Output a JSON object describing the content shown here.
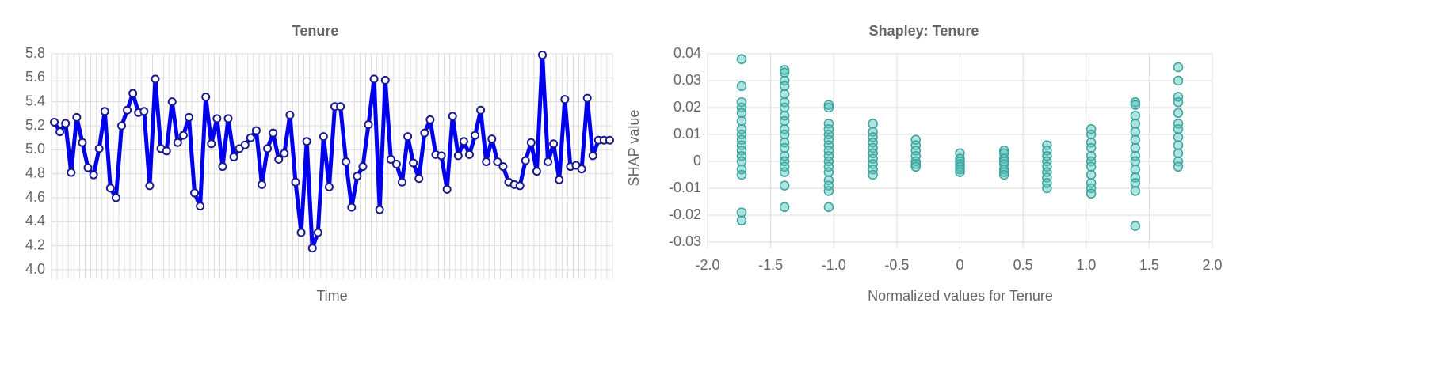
{
  "chart_data": [
    {
      "type": "line",
      "title": "Tenure",
      "x_label": "Time",
      "color": "#0000ee",
      "grid": true,
      "categories": [
        null,
        null,
        null,
        null,
        null,
        null,
        null,
        null,
        null,
        null,
        null,
        null,
        null,
        null,
        null,
        null,
        null,
        null,
        null,
        null,
        null,
        null,
        null,
        null,
        null,
        null,
        null,
        null,
        null,
        null,
        null,
        null,
        null,
        null,
        null,
        null,
        null,
        null,
        null,
        null,
        null,
        null,
        null,
        null,
        null,
        null,
        null,
        null,
        null,
        null,
        null,
        null,
        null,
        null,
        null,
        null,
        null,
        null,
        null,
        null,
        null,
        null,
        null,
        null,
        null,
        null,
        null,
        null,
        null,
        null,
        null,
        null,
        null,
        null,
        null,
        null,
        null,
        null,
        null,
        null,
        null,
        null,
        null,
        null,
        null,
        null,
        null,
        null,
        null,
        null,
        null,
        null,
        null,
        null,
        null,
        null,
        null,
        null,
        null,
        null
      ],
      "values": [
        5.23,
        5.15,
        5.22,
        4.81,
        5.27,
        5.06,
        4.85,
        4.79,
        5.01,
        5.32,
        4.68,
        4.6,
        5.2,
        5.33,
        5.47,
        5.31,
        5.32,
        4.7,
        5.59,
        5.01,
        4.99,
        5.4,
        5.06,
        5.12,
        5.27,
        4.64,
        4.53,
        5.44,
        5.05,
        5.26,
        4.86,
        5.26,
        4.94,
        5.01,
        5.04,
        5.1,
        5.16,
        4.71,
        5.01,
        5.14,
        4.92,
        4.97,
        5.29,
        4.73,
        4.31,
        5.07,
        4.18,
        4.31,
        5.11,
        4.69,
        5.36,
        5.36,
        4.9,
        4.52,
        4.78,
        4.86,
        5.21,
        5.59,
        4.5,
        5.58,
        4.92,
        4.88,
        4.73,
        5.11,
        4.89,
        4.76,
        5.14,
        5.25,
        4.96,
        4.95,
        4.67,
        5.28,
        4.95,
        5.07,
        4.96,
        5.12,
        5.33,
        4.9,
        5.09,
        4.9,
        4.86,
        4.73,
        4.71,
        4.7,
        4.91,
        5.06,
        4.82,
        5.79,
        4.9,
        5.05,
        4.75,
        5.42,
        4.86,
        4.87,
        4.84,
        5.43,
        4.95,
        5.08,
        5.08,
        5.08
      ],
      "ylim": [
        4.0,
        5.8
      ],
      "yticks": [
        {
          "value": 4.0,
          "label": "4.0"
        },
        4.2,
        4.4,
        4.6,
        4.8,
        {
          "value": 5.0,
          "label": "5.0"
        },
        5.2,
        5.4,
        5.6,
        5.8
      ]
    },
    {
      "type": "scatter",
      "title": "Shapley: Tenure",
      "x_label": "Normalized values for Tenure",
      "y_label": "SHAP value",
      "color": "#4fc1b9",
      "grid": true,
      "x": [
        -1.73,
        -1.73,
        -1.73,
        -1.73,
        -1.73,
        -1.73,
        -1.73,
        -1.73,
        -1.73,
        -1.73,
        -1.73,
        -1.73,
        -1.73,
        -1.73,
        -1.73,
        -1.73,
        -1.73,
        -1.39,
        -1.39,
        -1.39,
        -1.39,
        -1.39,
        -1.39,
        -1.39,
        -1.39,
        -1.39,
        -1.39,
        -1.39,
        -1.39,
        -1.39,
        -1.39,
        -1.39,
        -1.39,
        -1.39,
        -1.39,
        -1.39,
        -1.04,
        -1.04,
        -1.04,
        -1.04,
        -1.04,
        -1.04,
        -1.04,
        -1.04,
        -1.04,
        -1.04,
        -1.04,
        -1.04,
        -1.04,
        -1.04,
        -1.04,
        -1.04,
        -0.69,
        -0.69,
        -0.69,
        -0.69,
        -0.69,
        -0.69,
        -0.69,
        -0.69,
        -0.69,
        -0.69,
        -0.35,
        -0.35,
        -0.35,
        -0.35,
        -0.35,
        -0.35,
        -0.35,
        0,
        0,
        0,
        0,
        0,
        0,
        0,
        0.35,
        0.35,
        0.35,
        0.35,
        0.35,
        0.35,
        0.35,
        0.35,
        0.69,
        0.69,
        0.69,
        0.69,
        0.69,
        0.69,
        0.69,
        0.69,
        0.69,
        1.04,
        1.04,
        1.04,
        1.04,
        1.04,
        1.04,
        1.04,
        1.04,
        1.04,
        1.04,
        1.04,
        1.39,
        1.39,
        1.39,
        1.39,
        1.39,
        1.39,
        1.39,
        1.39,
        1.39,
        1.39,
        1.39,
        1.39,
        1.39,
        1.39,
        1.73,
        1.73,
        1.73,
        1.73,
        1.73,
        1.73,
        1.73,
        1.73,
        1.73,
        1.73,
        1.73,
        1.73
      ],
      "values": [
        0.038,
        0.028,
        0.022,
        0.02,
        0.018,
        0.015,
        0.012,
        0.01,
        0.008,
        0.006,
        0.004,
        0.002,
        0,
        -0.003,
        -0.005,
        -0.019,
        -0.022,
        0.034,
        0.033,
        0.03,
        0.028,
        0.025,
        0.022,
        0.02,
        0.017,
        0.015,
        0.012,
        0.01,
        0.007,
        0.005,
        0.002,
        0,
        -0.002,
        -0.004,
        -0.009,
        -0.017,
        0.021,
        0.02,
        0.014,
        0.012,
        0.01,
        0.008,
        0.006,
        0.004,
        0.002,
        0,
        -0.002,
        -0.004,
        -0.007,
        -0.009,
        -0.011,
        -0.017,
        0.014,
        0.011,
        0.009,
        0.007,
        0.005,
        0.003,
        0.001,
        -0.001,
        -0.003,
        -0.005,
        0.008,
        0.006,
        0.004,
        0.002,
        0,
        -0.001,
        -0.002,
        0.003,
        0.001,
        0,
        -0.001,
        -0.002,
        -0.003,
        -0.004,
        0.004,
        0.003,
        0.001,
        0,
        -0.001,
        -0.003,
        -0.004,
        -0.005,
        0.006,
        0.004,
        0.002,
        0,
        -0.002,
        -0.004,
        -0.006,
        -0.008,
        -0.01,
        0.012,
        0.01,
        0.007,
        0.005,
        0.002,
        0,
        -0.002,
        -0.005,
        -0.008,
        -0.01,
        -0.012,
        0.022,
        0.021,
        0.017,
        0.014,
        0.011,
        0.008,
        0.005,
        0.002,
        0,
        -0.003,
        -0.006,
        -0.008,
        -0.011,
        -0.024,
        0.035,
        0.03,
        0.024,
        0.022,
        0.018,
        0.014,
        0.012,
        0.009,
        0.006,
        0.003,
        0,
        -0.002
      ],
      "xlim": [
        -2.0,
        2.0
      ],
      "xticks": [
        {
          "value": -2.0,
          "label": "-2.0"
        },
        -1.5,
        {
          "value": -1.0,
          "label": "-1.0"
        },
        -0.5,
        0,
        0.5,
        {
          "value": 1.0,
          "label": "1.0"
        },
        1.5,
        {
          "value": 2.0,
          "label": "2.0"
        }
      ],
      "ylim": [
        -0.03,
        0.04
      ],
      "yticks": [
        -0.03,
        -0.02,
        -0.01,
        0,
        0.01,
        0.02,
        0.03,
        0.04
      ]
    }
  ]
}
